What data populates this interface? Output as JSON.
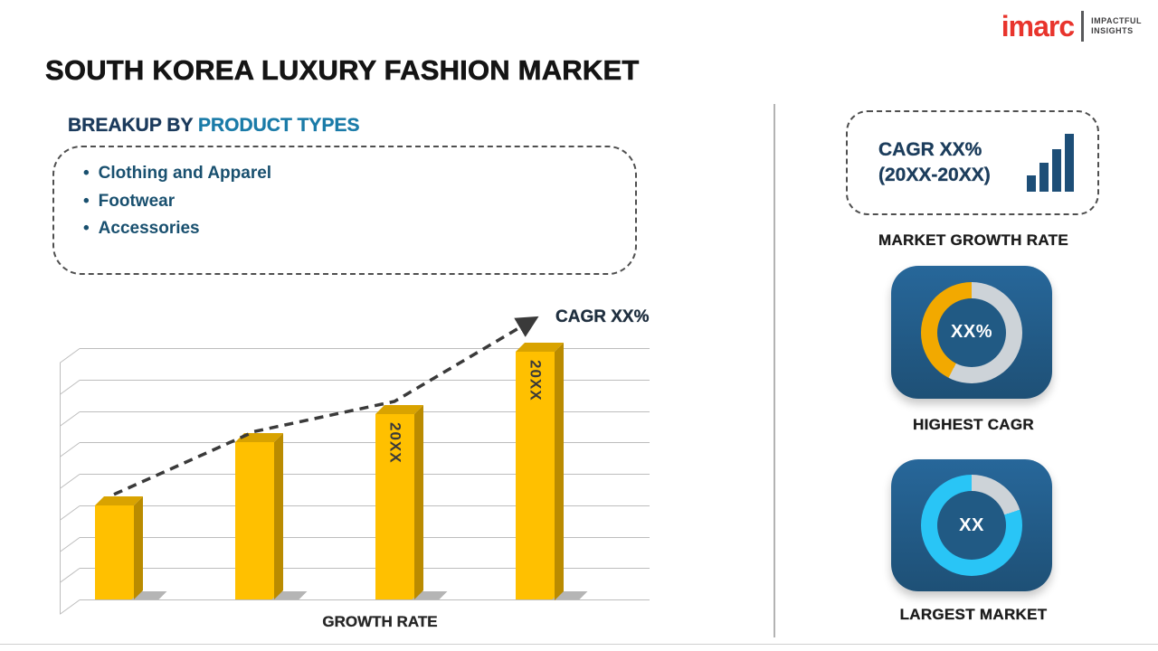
{
  "title": "SOUTH KOREA LUXURY FASHION MARKET",
  "logo": {
    "brand": "imarc",
    "tagline_line1": "IMPACTFUL",
    "tagline_line2": "INSIGHTS"
  },
  "breakup": {
    "heading_prefix": "BREAKUP BY ",
    "heading_accent": "PRODUCT TYPES",
    "items": [
      "Clothing and Apparel",
      "Footwear",
      "Accessories"
    ]
  },
  "chart_data": {
    "type": "bar",
    "title": "",
    "xlabel": "GROWTH RATE",
    "ylabel": "",
    "categories": [
      "",
      "",
      "20XX",
      "20XX"
    ],
    "bar_labels": [
      "",
      "",
      "20XX",
      "20XX"
    ],
    "values": [
      3.0,
      5.0,
      5.9,
      7.9
    ],
    "ylim": [
      0,
      8
    ],
    "gridlines": true,
    "bar_color": "#FFC000",
    "trend": {
      "style": "dashed-arrow",
      "label": "CAGR XX%"
    }
  },
  "sidebar": {
    "growth_box": {
      "line1": "CAGR XX%",
      "line2": "(20XX-20XX)",
      "icon": "bar-chart-icon"
    },
    "growth_caption": "MARKET GROWTH RATE",
    "highest_cagr": {
      "value": "XX%",
      "caption": "HIGHEST CAGR",
      "segment_color": "#F2A900",
      "track_color": "#CDD3D8",
      "segment_start_deg": 207
    },
    "largest_market": {
      "value": "XX",
      "caption": "LARGEST MARKET",
      "segment_color": "#29C5F6",
      "track_color": "#CDD3D8",
      "segment_start_deg": 72
    }
  },
  "colors": {
    "heading_navy": "#1B3A5C",
    "heading_accent": "#1A7BA8",
    "bullet_text": "#19506F",
    "tile_blue": "#23618F",
    "bar_yellow": "#FFC000",
    "brand_red": "#E8342C"
  }
}
